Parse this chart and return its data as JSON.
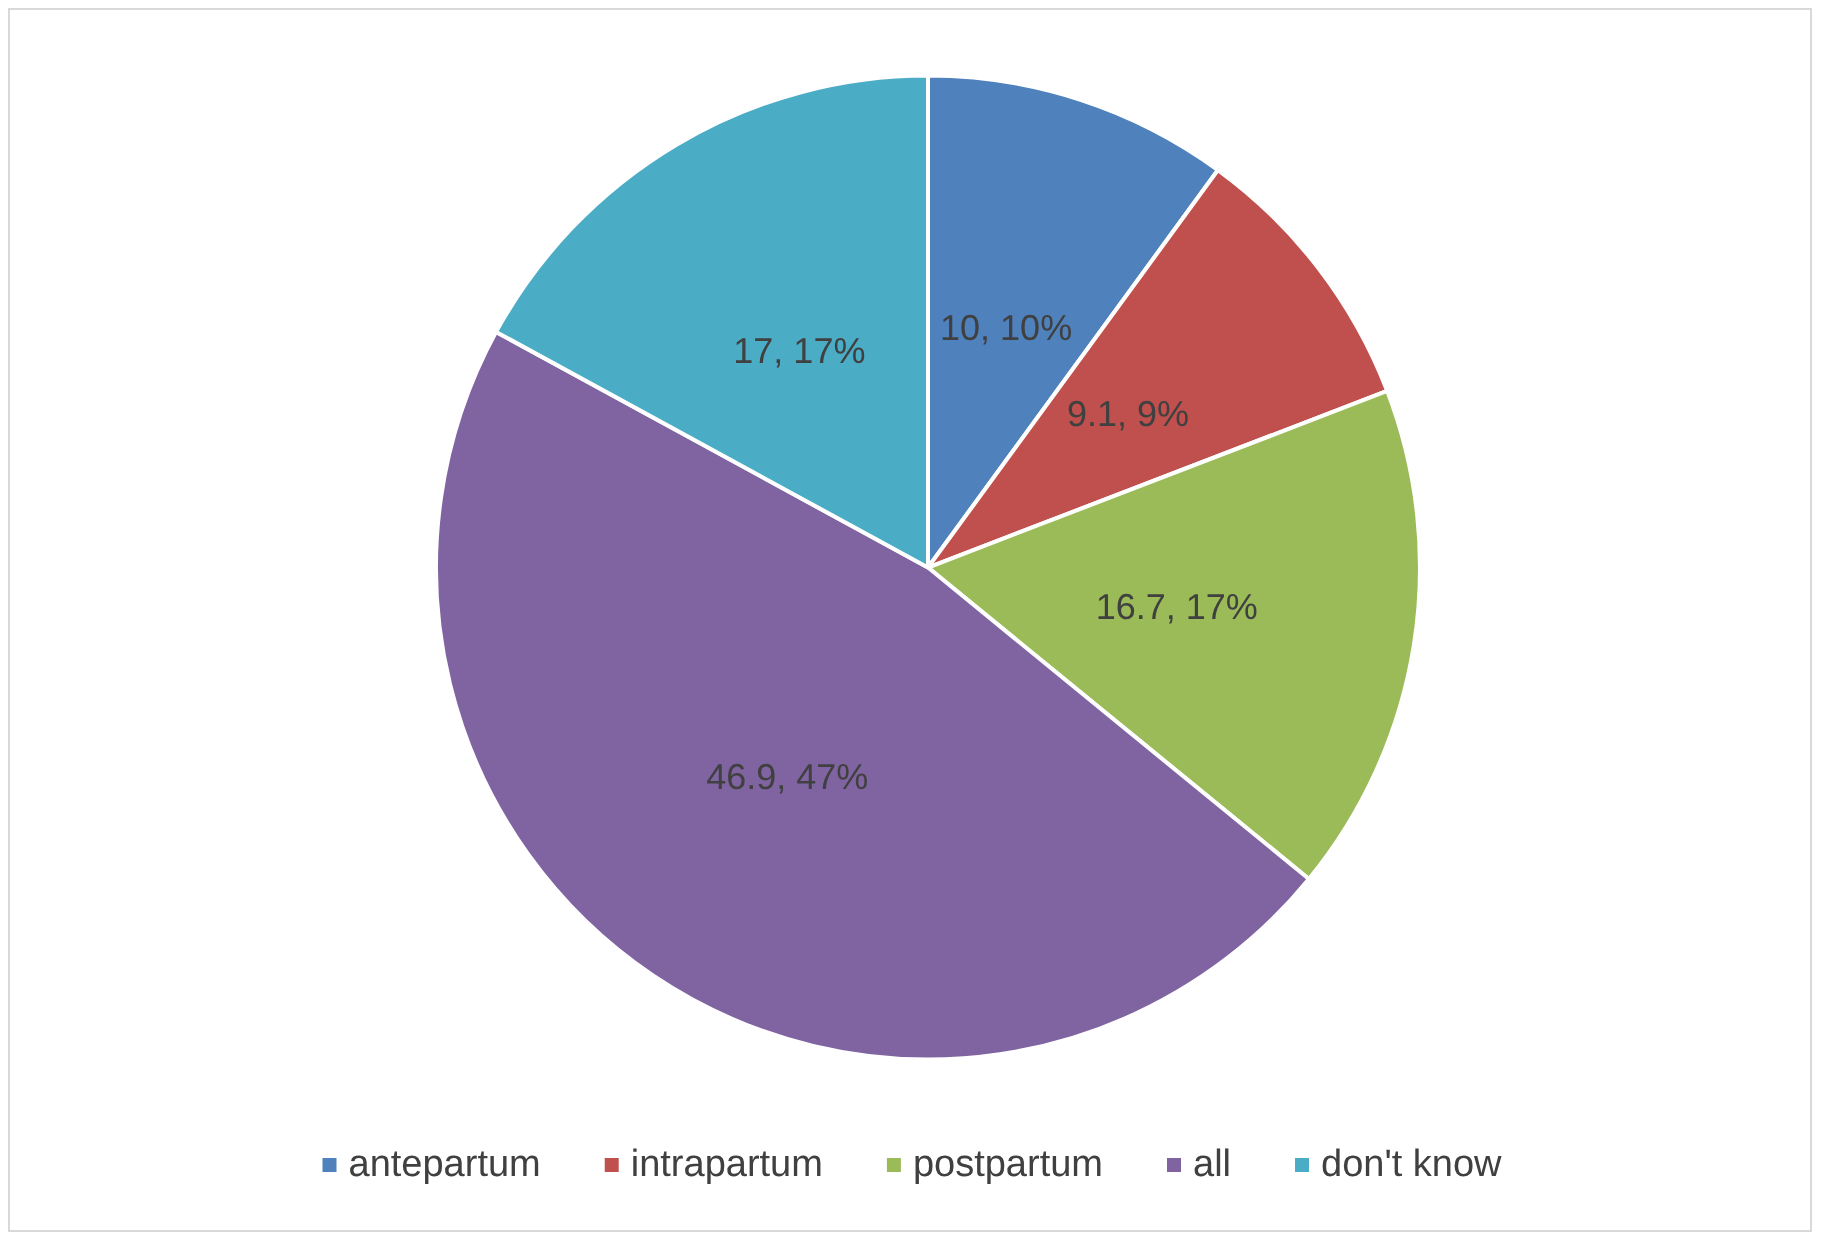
{
  "chart_data": {
    "type": "pie",
    "categories": [
      "antepartum",
      "intrapartum",
      "postpartum",
      "all",
      "don't know"
    ],
    "values": [
      10,
      9.1,
      16.7,
      46.9,
      17
    ],
    "colors": [
      "#4f81bd",
      "#c0504d",
      "#9bbb59",
      "#8064a2",
      "#4bacc6"
    ],
    "value_labels": [
      "10, 10%",
      "9.1, 9%",
      "16.7, 17%",
      "46.9, 47%",
      "17, 17%"
    ],
    "legend": "bottom"
  }
}
